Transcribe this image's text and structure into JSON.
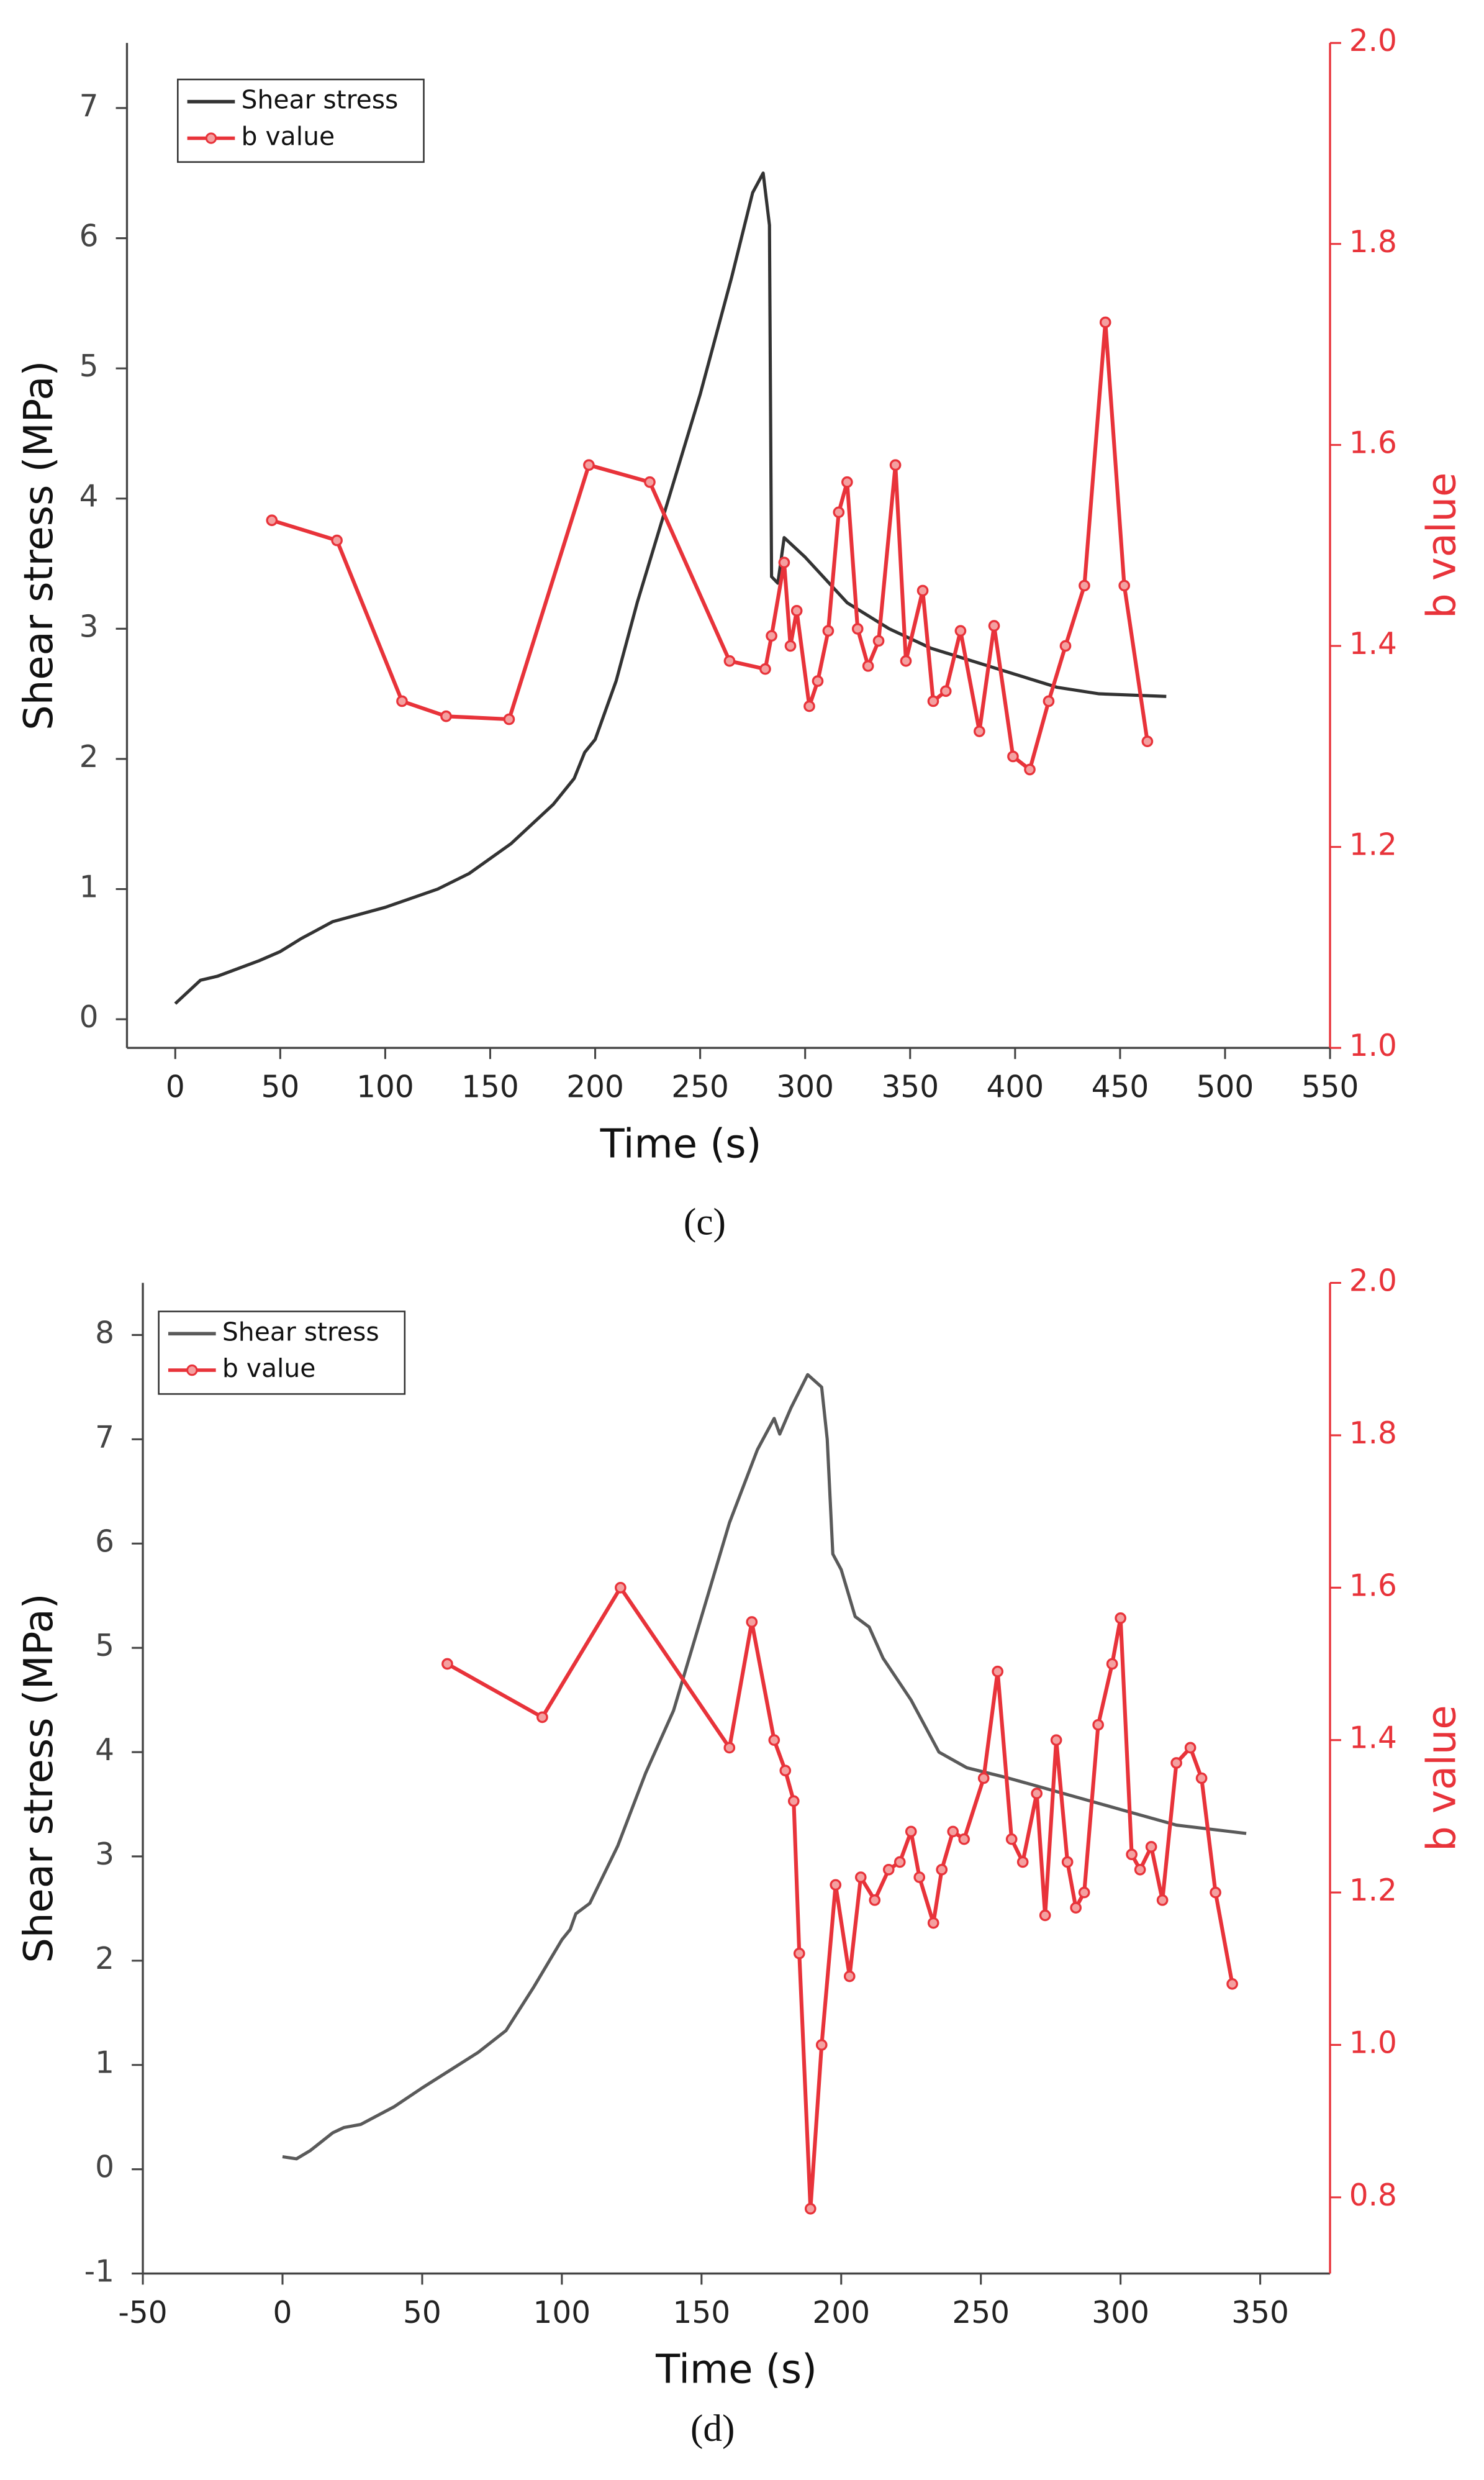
{
  "chart_data": [
    {
      "type": "line",
      "figure_label": "(c)",
      "x_label": "Time (s)",
      "y_label": "Shear stress (MPa)",
      "y2_label": "b value",
      "xlim": [
        -23,
        550
      ],
      "xticks": [
        0,
        50,
        100,
        150,
        200,
        250,
        300,
        350,
        400,
        450,
        500,
        550
      ],
      "ylim": [
        -0.22,
        7.5
      ],
      "yticks": [
        0,
        1,
        2,
        3,
        4,
        5,
        6,
        7
      ],
      "y2lim": [
        1.0,
        2.0
      ],
      "y2ticks": [
        {
          "value": 1.0,
          "label": "1.0"
        },
        1.2,
        1.4,
        1.6,
        1.8,
        {
          "value": 2.0,
          "label": "2.0"
        }
      ],
      "legend": "upper left",
      "series": [
        {
          "name": "Shear stress",
          "color": "#333333",
          "markers": false,
          "x": [
            0,
            12,
            20,
            40,
            50,
            60,
            75,
            100,
            125,
            140,
            160,
            180,
            190,
            195,
            200,
            210,
            220,
            235,
            250,
            265,
            275,
            280,
            283,
            284,
            287,
            290,
            300,
            320,
            340,
            360,
            380,
            400,
            420,
            440,
            472
          ],
          "values": [
            0.12,
            0.3,
            0.33,
            0.45,
            0.52,
            0.62,
            0.75,
            0.86,
            1.0,
            1.12,
            1.35,
            1.65,
            1.85,
            2.05,
            2.15,
            2.6,
            3.2,
            4.0,
            4.8,
            5.7,
            6.35,
            6.5,
            6.1,
            3.4,
            3.35,
            3.7,
            3.55,
            3.2,
            3.0,
            2.85,
            2.75,
            2.65,
            2.55,
            2.5,
            2.48
          ]
        },
        {
          "name": "b value",
          "color": "#e8333a",
          "markers": true,
          "axis": "y2",
          "x": [
            46,
            77,
            108,
            129,
            159,
            197,
            226,
            264,
            281,
            284,
            290,
            293,
            296,
            302,
            306,
            311,
            316,
            320,
            325,
            330,
            335,
            343,
            348,
            356,
            361,
            367,
            374,
            383,
            390,
            399,
            407,
            416,
            424,
            433,
            443,
            452,
            463
          ],
          "values": [
            1.525,
            1.505,
            1.345,
            1.33,
            1.327,
            1.58,
            1.563,
            1.385,
            1.377,
            1.41,
            1.483,
            1.4,
            1.435,
            1.34,
            1.365,
            1.415,
            1.533,
            1.563,
            1.417,
            1.38,
            1.405,
            1.58,
            1.385,
            1.455,
            1.345,
            1.355,
            1.415,
            1.315,
            1.42,
            1.29,
            1.277,
            1.345,
            1.4,
            1.46,
            1.722,
            1.46,
            1.305
          ]
        }
      ]
    },
    {
      "type": "line",
      "figure_label": "(d)",
      "x_label": "Time (s)",
      "y_label": "Shear stress (MPa)",
      "y2_label": "b value",
      "xlim": [
        -50,
        375
      ],
      "xticks": [
        -50,
        0,
        50,
        100,
        150,
        200,
        250,
        300,
        350
      ],
      "ylim": [
        -1,
        8.5
      ],
      "yticks": [
        -1,
        0,
        1,
        2,
        3,
        4,
        5,
        6,
        7,
        8
      ],
      "y2lim": [
        0.7,
        2.0
      ],
      "y2ticks": [
        0.8,
        {
          "value": 1.0,
          "label": "1.0"
        },
        1.2,
        1.4,
        1.6,
        1.8,
        {
          "value": 2.0,
          "label": "2.0"
        }
      ],
      "legend": "upper left",
      "series": [
        {
          "name": "Shear stress",
          "color": "#5a5a5a",
          "markers": false,
          "x": [
            0,
            5,
            10,
            18,
            22,
            28,
            40,
            50,
            60,
            70,
            80,
            90,
            100,
            103,
            105,
            110,
            120,
            130,
            135,
            140,
            150,
            160,
            170,
            176,
            178,
            182,
            188,
            193,
            195,
            197,
            200,
            205,
            210,
            215,
            225,
            235,
            245,
            260,
            280,
            300,
            320,
            345
          ],
          "values": [
            0.12,
            0.1,
            0.18,
            0.35,
            0.4,
            0.43,
            0.6,
            0.78,
            0.95,
            1.12,
            1.33,
            1.75,
            2.2,
            2.3,
            2.45,
            2.55,
            3.1,
            3.8,
            4.1,
            4.4,
            5.3,
            6.2,
            6.9,
            7.2,
            7.05,
            7.3,
            7.62,
            7.5,
            7.0,
            5.9,
            5.75,
            5.3,
            5.2,
            4.9,
            4.5,
            4.0,
            3.85,
            3.75,
            3.6,
            3.45,
            3.3,
            3.22
          ]
        },
        {
          "name": "b value",
          "color": "#e8333a",
          "markers": true,
          "axis": "y2",
          "x": [
            59,
            93,
            121,
            160,
            168,
            176,
            180,
            183,
            185,
            189,
            193,
            198,
            203,
            207,
            212,
            217,
            221,
            225,
            228,
            233,
            236,
            240,
            244,
            251,
            256,
            261,
            265,
            270,
            273,
            277,
            281,
            284,
            287,
            292,
            297,
            300,
            304,
            307,
            311,
            315,
            320,
            325,
            329,
            334,
            340
          ],
          "values": [
            1.5,
            1.43,
            1.6,
            1.39,
            1.555,
            1.4,
            1.36,
            1.32,
            1.12,
            0.785,
            1.0,
            1.21,
            1.09,
            1.22,
            1.19,
            1.23,
            1.24,
            1.28,
            1.22,
            1.16,
            1.23,
            1.28,
            1.27,
            1.35,
            1.49,
            1.27,
            1.24,
            1.33,
            1.17,
            1.4,
            1.24,
            1.18,
            1.2,
            1.42,
            1.5,
            1.56,
            1.25,
            1.23,
            1.26,
            1.19,
            1.37,
            1.39,
            1.35,
            1.2,
            1.08
          ]
        }
      ]
    }
  ]
}
